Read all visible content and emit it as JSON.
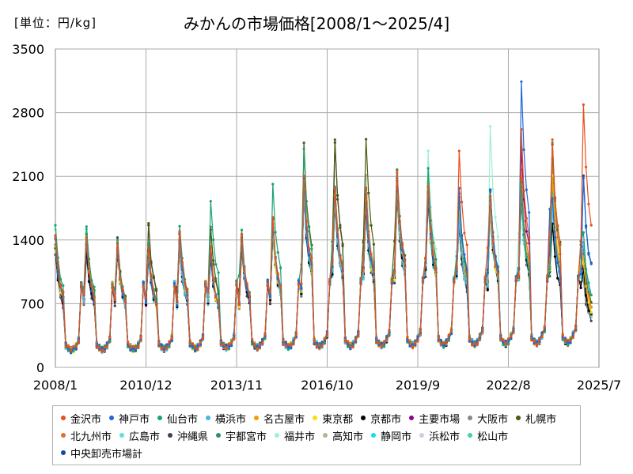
{
  "unit_label": "[単位：円/kg]",
  "chart_data": {
    "type": "line",
    "title": "みかんの市場価格[2008/1～2025/4]",
    "xlabel": "",
    "ylabel": "",
    "ylim": [
      0,
      3500
    ],
    "yticks": [
      0,
      700,
      1400,
      2100,
      2800,
      3500
    ],
    "x_ticks": [
      "2008/1",
      "2010/12",
      "2013/11",
      "2016/10",
      "2019/9",
      "2022/8",
      "2025/7"
    ],
    "grid": true,
    "legend_position": "bottom",
    "x_start": "2008/1",
    "x_end": "2025/7",
    "seasonal_profile": [
      260,
      180,
      150,
      140,
      140,
      150,
      160,
      190,
      850,
      1250,
      900,
      500
    ],
    "series": [
      {
        "name": "金沢市",
        "color": "#e8501c",
        "peaks": [
          1480,
          1400,
          1350,
          1320,
          1520,
          1300,
          1450,
          1650,
          2120,
          2000,
          1950,
          2150,
          2000,
          2400,
          1850,
          2600,
          2500,
          2900
        ]
      },
      {
        "name": "神戸市",
        "color": "#1f68d6",
        "peaks": [
          1400,
          1350,
          1300,
          1280,
          1450,
          1250,
          1400,
          1600,
          2050,
          1950,
          1900,
          2100,
          1950,
          1950,
          1950,
          3150,
          1880,
          2050
        ]
      },
      {
        "name": "仙台市",
        "color": "#1aa270",
        "peaks": [
          1580,
          1580,
          1380,
          1360,
          1560,
          1850,
          1480,
          2000,
          2400,
          2000,
          1980,
          2150,
          2180,
          1880,
          1950,
          2000,
          2450,
          1480
        ]
      },
      {
        "name": "横浜市",
        "color": "#4bb3e8",
        "peaks": [
          1380,
          1420,
          1300,
          1250,
          1350,
          1250,
          1380,
          1550,
          1950,
          1850,
          1800,
          2050,
          1900,
          1650,
          1800,
          1950,
          1900,
          1400
        ]
      },
      {
        "name": "名古屋市",
        "color": "#f0a000",
        "peaks": [
          1420,
          1450,
          1320,
          1300,
          1400,
          1280,
          1400,
          1550,
          2000,
          1900,
          1850,
          2100,
          2000,
          1700,
          1850,
          2050,
          2050,
          1200
        ]
      },
      {
        "name": "東京都",
        "color": "#f2e400",
        "peaks": [
          1360,
          1420,
          1280,
          1260,
          1380,
          1240,
          1360,
          1500,
          1950,
          1850,
          1800,
          2000,
          1900,
          1650,
          1780,
          2000,
          2100,
          1150
        ]
      },
      {
        "name": "京都市",
        "color": "#000000",
        "peaks": [
          1300,
          1300,
          1260,
          1240,
          1340,
          1220,
          1340,
          1480,
          1900,
          1800,
          1750,
          1950,
          1850,
          1600,
          1750,
          1900,
          1600,
          1050
        ]
      },
      {
        "name": "主要市場",
        "color": "#8e008e",
        "peaks": [
          1350,
          1380,
          1290,
          1270,
          1390,
          1250,
          1380,
          1520,
          1980,
          1880,
          1830,
          2020,
          1920,
          1700,
          1850,
          2450,
          2000,
          1100
        ]
      },
      {
        "name": "大阪市",
        "color": "#808890",
        "peaks": [
          1320,
          1360,
          1270,
          1250,
          1380,
          1230,
          1370,
          1500,
          1960,
          1860,
          1820,
          2000,
          1900,
          1680,
          1820,
          1980,
          1950,
          1000
        ]
      },
      {
        "name": "札幌市",
        "color": "#4a5a10",
        "peaks": [
          1450,
          1480,
          1400,
          1560,
          1450,
          1520,
          1450,
          1600,
          2450,
          2500,
          2520,
          2200,
          2000,
          1900,
          1950,
          2000,
          2480,
          1300
        ]
      },
      {
        "name": "北九州市",
        "color": "#e0702c",
        "peaks": [
          1460,
          1380,
          1340,
          1300,
          1500,
          1280,
          1430,
          1620,
          2080,
          1980,
          1930,
          2120,
          1980,
          1880,
          1900,
          2150,
          2280,
          1250
        ]
      },
      {
        "name": "広島市",
        "color": "#5fe0e0",
        "peaks": [
          1300,
          1300,
          1250,
          1200,
          1300,
          1200,
          1330,
          1450,
          1850,
          1750,
          1700,
          1900,
          1800,
          1600,
          1700,
          1850,
          1800,
          1000
        ]
      },
      {
        "name": "沖縄県",
        "color": "#404058",
        "peaks": [
          1250,
          1250,
          1400,
          1550,
          1300,
          1200,
          1300,
          1480,
          1900,
          2480,
          1700,
          1850,
          1850,
          1550,
          1950,
          1850,
          1750,
          950
        ]
      },
      {
        "name": "宇都宮市",
        "color": "#2f8f6f",
        "peaks": [
          1400,
          1450,
          1300,
          1300,
          1420,
          1520,
          1420,
          1550,
          2000,
          1900,
          1850,
          2050,
          1900,
          1650,
          1800,
          1950,
          2000,
          1150
        ]
      },
      {
        "name": "福井市",
        "color": "#a0f0d0",
        "peaks": [
          1500,
          1500,
          1320,
          1320,
          1380,
          1300,
          1420,
          1650,
          2050,
          1950,
          2050,
          2100,
          2350,
          1800,
          2650,
          2000,
          1950,
          1100
        ]
      },
      {
        "name": "高知市",
        "color": "#b8b090",
        "peaks": [
          1330,
          1330,
          1270,
          1250,
          1360,
          1230,
          1360,
          1500,
          1950,
          1850,
          2080,
          2000,
          1900,
          1650,
          1800,
          1950,
          1900,
          1050
        ]
      },
      {
        "name": "静岡市",
        "color": "#10e0e8",
        "peaks": [
          1300,
          1300,
          1250,
          1230,
          1330,
          1220,
          1340,
          1480,
          1920,
          1820,
          1780,
          1980,
          1880,
          1620,
          1780,
          1920,
          1880,
          1000
        ]
      },
      {
        "name": "浜松市",
        "color": "#d8c8e0",
        "peaks": [
          1310,
          1320,
          1260,
          1240,
          1350,
          1230,
          1350,
          1490,
          1930,
          1830,
          1790,
          1990,
          1890,
          1630,
          1790,
          1930,
          1890,
          1020
        ]
      },
      {
        "name": "松山市",
        "color": "#40d0a8",
        "peaks": [
          1480,
          1500,
          1340,
          1320,
          1450,
          1300,
          1450,
          1580,
          2050,
          1950,
          1900,
          2100,
          1950,
          1700,
          1850,
          2000,
          1950,
          1150
        ]
      },
      {
        "name": "中央卸売市場計",
        "color": "#1048b0",
        "peaks": [
          1340,
          1370,
          1280,
          1260,
          1380,
          1240,
          1370,
          1510,
          1970,
          1870,
          1820,
          2010,
          1910,
          1690,
          1840,
          1980,
          1960,
          2080
        ]
      }
    ]
  }
}
